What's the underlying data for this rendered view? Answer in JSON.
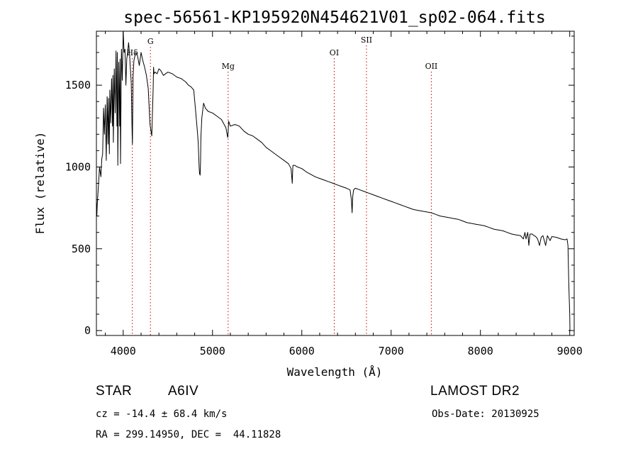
{
  "chart_data": {
    "type": "line",
    "title": "spec-56561-KP195920N454621V01_sp02-064.fits",
    "xlabel": "Wavelength (Å)",
    "ylabel": "Flux (relative)",
    "xlim": [
      3700,
      9050
    ],
    "ylim": [
      -30,
      1830
    ],
    "x_ticks": [
      4000,
      5000,
      6000,
      7000,
      8000,
      9000
    ],
    "y_ticks": [
      0,
      500,
      1000,
      1500
    ],
    "grid": false,
    "line_color": "#000000",
    "marker_color": "#cc0000",
    "line_markers": [
      {
        "label": "Hδ",
        "x": 4102
      },
      {
        "label": "G",
        "x": 4305
      },
      {
        "label": "Mg",
        "x": 5175
      },
      {
        "label": "OI",
        "x": 6363
      },
      {
        "label": "SII",
        "x": 6724
      },
      {
        "label": "OII",
        "x": 7450
      }
    ],
    "series": [
      {
        "x": [
          3700,
          3705,
          3710,
          3720,
          3735,
          3750,
          3760,
          3770,
          3780,
          3790,
          3800,
          3810,
          3820,
          3830,
          3835,
          3845,
          3850,
          3860,
          3870,
          3880,
          3885,
          3890,
          3900,
          3910,
          3920,
          3930,
          3935,
          3940,
          3950,
          3960,
          3965,
          3970,
          3980,
          3990,
          4000,
          4010,
          4020,
          4030,
          4040,
          4050,
          4060,
          4070,
          4080,
          4090,
          4100,
          4103,
          4110,
          4120,
          4140,
          4160,
          4180,
          4200,
          4220,
          4240,
          4260,
          4280,
          4300,
          4320,
          4335,
          4340,
          4345,
          4360,
          4380,
          4400,
          4420,
          4450,
          4500,
          4550,
          4600,
          4650,
          4700,
          4730,
          4760,
          4790,
          4810,
          4830,
          4840,
          4850,
          4855,
          4861,
          4866,
          4870,
          4880,
          4900,
          4920,
          4950,
          5000,
          5050,
          5100,
          5150,
          5170,
          5175,
          5180,
          5200,
          5250,
          5300,
          5350,
          5400,
          5450,
          5500,
          5550,
          5600,
          5650,
          5700,
          5750,
          5800,
          5850,
          5880,
          5890,
          5893,
          5896,
          5900,
          5920,
          5950,
          6000,
          6050,
          6100,
          6150,
          6200,
          6250,
          6300,
          6350,
          6400,
          6450,
          6500,
          6540,
          6555,
          6563,
          6570,
          6580,
          6600,
          6650,
          6700,
          6750,
          6800,
          6850,
          6900,
          6950,
          7000,
          7050,
          7100,
          7150,
          7200,
          7250,
          7300,
          7350,
          7400,
          7450,
          7500,
          7550,
          7600,
          7650,
          7700,
          7750,
          7800,
          7850,
          7900,
          7950,
          8000,
          8050,
          8100,
          8150,
          8200,
          8250,
          8300,
          8350,
          8400,
          8450,
          8480,
          8498,
          8510,
          8530,
          8542,
          8555,
          8580,
          8600,
          8620,
          8640,
          8662,
          8680,
          8700,
          8730,
          8750,
          8780,
          8800,
          8850,
          8900,
          8950,
          8970,
          8980,
          8990,
          9000,
          9002,
          9005
        ],
        "values": [
          800,
          700,
          780,
          860,
          1000,
          940,
          1050,
          1080,
          1360,
          1200,
          1380,
          1040,
          1430,
          1140,
          1420,
          1080,
          1470,
          1270,
          1540,
          1250,
          1560,
          1150,
          1600,
          1330,
          1710,
          1250,
          1700,
          1010,
          1640,
          1250,
          1660,
          1020,
          1720,
          1530,
          1830,
          1700,
          1720,
          1500,
          1660,
          1700,
          1760,
          1700,
          1600,
          1520,
          1200,
          1140,
          1550,
          1650,
          1700,
          1680,
          1620,
          1700,
          1650,
          1610,
          1560,
          1480,
          1260,
          1190,
          1470,
          1610,
          1570,
          1580,
          1570,
          1600,
          1590,
          1560,
          1580,
          1570,
          1550,
          1540,
          1520,
          1500,
          1490,
          1470,
          1350,
          1220,
          1150,
          1000,
          960,
          950,
          1030,
          1180,
          1300,
          1390,
          1360,
          1340,
          1330,
          1310,
          1290,
          1240,
          1180,
          1210,
          1280,
          1250,
          1260,
          1250,
          1220,
          1200,
          1190,
          1170,
          1150,
          1120,
          1100,
          1080,
          1060,
          1040,
          1020,
          990,
          920,
          900,
          960,
          1010,
          1010,
          1000,
          990,
          970,
          955,
          940,
          930,
          920,
          910,
          900,
          890,
          880,
          870,
          860,
          800,
          720,
          820,
          860,
          870,
          860,
          850,
          840,
          830,
          820,
          810,
          800,
          790,
          780,
          770,
          760,
          750,
          740,
          735,
          730,
          725,
          720,
          710,
          700,
          695,
          690,
          685,
          680,
          670,
          660,
          655,
          650,
          645,
          640,
          630,
          620,
          615,
          610,
          600,
          590,
          585,
          580,
          560,
          600,
          560,
          600,
          520,
          590,
          590,
          580,
          575,
          560,
          520,
          570,
          580,
          520,
          580,
          550,
          575,
          570,
          560,
          555,
          560,
          520,
          280,
          100,
          0,
          0
        ]
      }
    ],
    "annotations": {
      "object_type": "STAR",
      "subclass": "A6IV",
      "survey": "LAMOST DR2",
      "cz": "cz = -14.4 ± 68.4 km/s",
      "obs_date": "Obs-Date: 20130925",
      "coords": "RA = 299.14950, DEC =  44.11828"
    }
  }
}
